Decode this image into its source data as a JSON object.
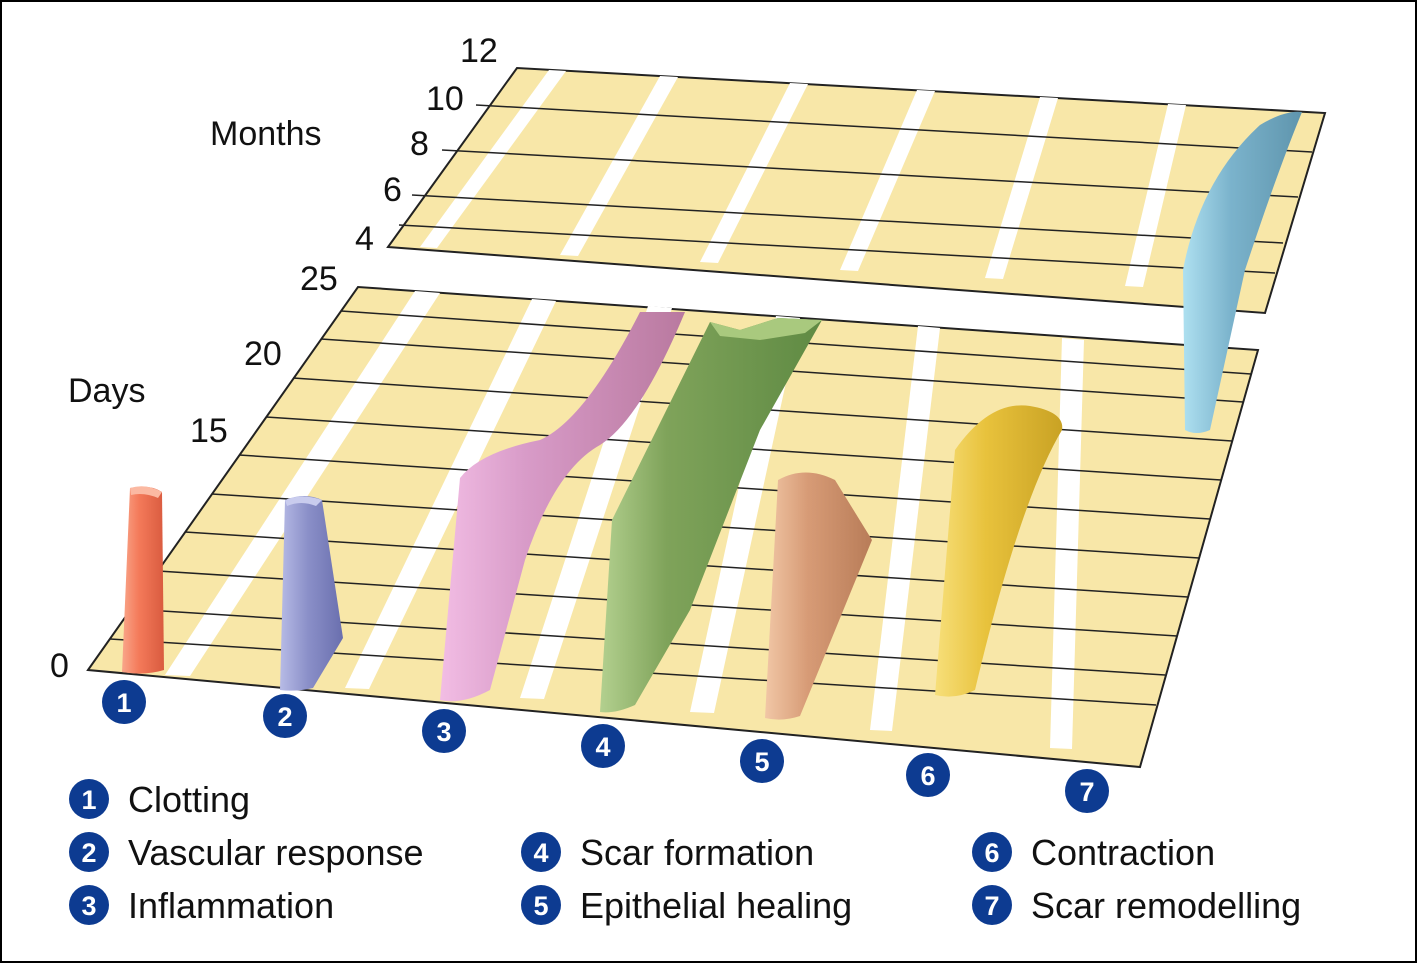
{
  "chart_data": {
    "type": "area",
    "axes": {
      "days": {
        "label": "Days",
        "ticks": [
          "0",
          "15",
          "20",
          "25"
        ],
        "range": [
          0,
          25
        ]
      },
      "months": {
        "label": "Months",
        "ticks": [
          "4",
          "6",
          "8",
          "10",
          "12"
        ],
        "range": [
          4,
          12
        ]
      }
    },
    "series": [
      {
        "id": "1",
        "name": "Clotting",
        "color": "#f47a5a",
        "start_day": 0,
        "end_day": 6
      },
      {
        "id": "2",
        "name": "Vascular response",
        "color": "#8a8fc8",
        "start_day": 0,
        "end_day": 7
      },
      {
        "id": "3",
        "name": "Inflammation",
        "color": "#d89bc8",
        "start_day": 0,
        "end_day": 25
      },
      {
        "id": "4",
        "name": "Scar formation",
        "color": "#7fa35a",
        "start_day": 0,
        "end_day": 25
      },
      {
        "id": "5",
        "name": "Epithelial healing",
        "color": "#d79b76",
        "start_day": 0,
        "end_day": 8
      },
      {
        "id": "6",
        "name": "Contraction",
        "color": "#e8c23c",
        "start_day": 0,
        "end_day": 16
      },
      {
        "id": "7",
        "name": "Scar remodelling",
        "color": "#7bb3cc",
        "start_day": 16,
        "end_month": 12
      }
    ]
  },
  "colors": {
    "plane": "#f8e7a8",
    "lane_gap": "#ffffff",
    "badge": "#0d3b91"
  }
}
